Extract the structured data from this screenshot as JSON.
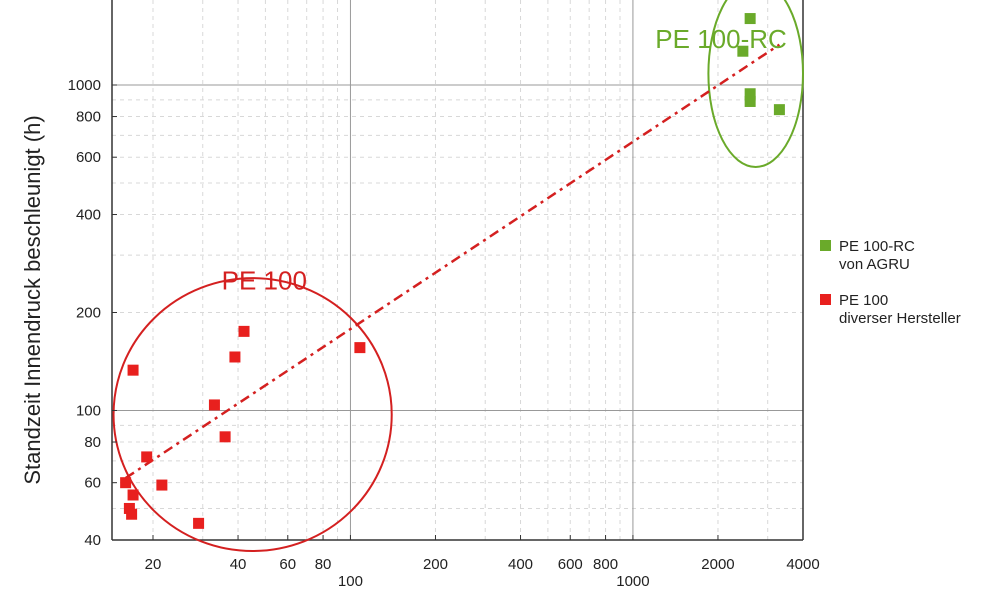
{
  "chart_data": {
    "type": "scatter",
    "ylabel": "Standzeit Innendruck beschleunigt (h)",
    "xlabel": "",
    "x_scale": "log",
    "y_scale": "log",
    "xlim": [
      12,
      4000
    ],
    "ylim": [
      40,
      2000
    ],
    "grid": true,
    "legend_position": "right",
    "x_ticks": [
      {
        "value": 20,
        "label": "20"
      },
      {
        "value": 40,
        "label": "40"
      },
      {
        "value": 60,
        "label": "60"
      },
      {
        "value": 80,
        "label": "80"
      },
      {
        "value": 100,
        "label": "100"
      },
      {
        "value": 200,
        "label": "200"
      },
      {
        "value": 400,
        "label": "400"
      },
      {
        "value": 600,
        "label": "600"
      },
      {
        "value": 800,
        "label": "800"
      },
      {
        "value": 1000,
        "label": "1000"
      },
      {
        "value": 2000,
        "label": "2000"
      },
      {
        "value": 4000,
        "label": "4000"
      }
    ],
    "y_ticks": [
      {
        "value": 40,
        "label": "40"
      },
      {
        "value": 60,
        "label": "60"
      },
      {
        "value": 80,
        "label": "80"
      },
      {
        "value": 100,
        "label": "100"
      },
      {
        "value": 200,
        "label": "200"
      },
      {
        "value": 400,
        "label": "400"
      },
      {
        "value": 600,
        "label": "600"
      },
      {
        "value": 800,
        "label": "800"
      },
      {
        "value": 1000,
        "label": "1000"
      }
    ],
    "series": [
      {
        "name": "PE 100-RC von AGRU",
        "legend_lines": [
          "PE 100-RC",
          "von AGRU"
        ],
        "color": "#6aaa2a",
        "points": [
          {
            "x": 2600,
            "y": 1600
          },
          {
            "x": 2450,
            "y": 1270
          },
          {
            "x": 2600,
            "y": 940
          },
          {
            "x": 2600,
            "y": 890
          },
          {
            "x": 3300,
            "y": 840
          }
        ]
      },
      {
        "name": "PE 100 diverser Hersteller",
        "legend_lines": [
          "PE 100",
          "diverser Hersteller"
        ],
        "color": "#e8201e",
        "points": [
          {
            "x": 17,
            "y": 133
          },
          {
            "x": 19,
            "y": 72
          },
          {
            "x": 16,
            "y": 60
          },
          {
            "x": 17,
            "y": 55
          },
          {
            "x": 16.5,
            "y": 50
          },
          {
            "x": 16.8,
            "y": 48
          },
          {
            "x": 21.5,
            "y": 59
          },
          {
            "x": 29,
            "y": 45
          },
          {
            "x": 33,
            "y": 104
          },
          {
            "x": 36,
            "y": 83
          },
          {
            "x": 39,
            "y": 146
          },
          {
            "x": 42,
            "y": 175
          },
          {
            "x": 108,
            "y": 156
          }
        ]
      }
    ],
    "trendline": {
      "style": "dash-dot",
      "color": "#d42020",
      "from": {
        "x": 16,
        "y": 62
      },
      "to": {
        "x": 3300,
        "y": 1330
      }
    },
    "annotations": [
      {
        "text": "PE 100-RC",
        "color": "#6aaa2a",
        "x": 1200,
        "y": 1300
      },
      {
        "text": "PE 100",
        "color": "#d42020",
        "x": 35,
        "y": 235
      }
    ],
    "group_ellipses": [
      {
        "series": "PE 100-RC von AGRU",
        "color": "#6aaa2a",
        "center": {
          "x": 2700,
          "y": 1050
        },
        "x_range": [
          1850,
          4000
        ],
        "y_range": [
          560,
          2100
        ]
      },
      {
        "series": "PE 100 diverser Hersteller",
        "color": "#d42020",
        "center": {
          "x": 45,
          "y": 97
        },
        "x_range": [
          14.5,
          140
        ],
        "y_range": [
          37,
          255
        ]
      }
    ]
  }
}
